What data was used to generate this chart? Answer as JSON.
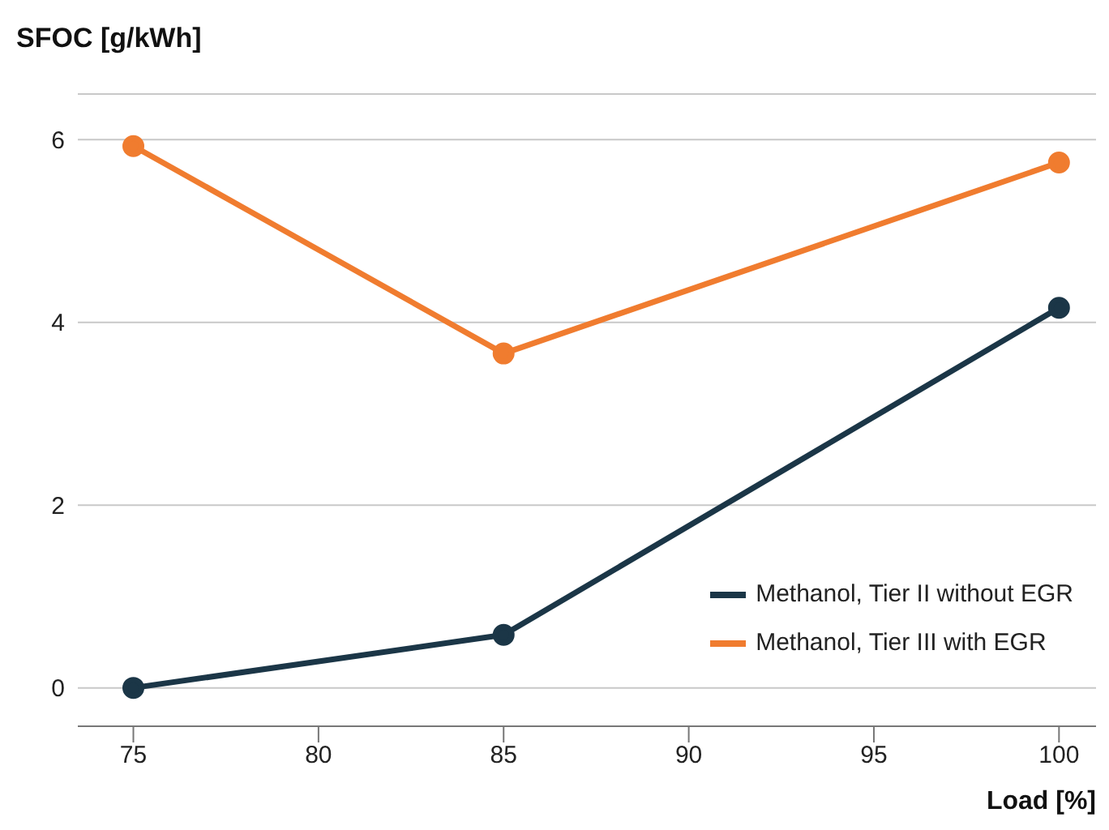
{
  "chart_data": {
    "type": "line",
    "ylabel": "SFOC [g/kWh]",
    "xlabel": "Load [%]",
    "x": [
      75,
      85,
      100
    ],
    "series": [
      {
        "name": "Methanol, Tier II without EGR",
        "color": "#1b3647",
        "values": [
          0,
          0.58,
          4.16
        ]
      },
      {
        "name": "Methanol, Tier III with EGR",
        "color": "#f07c2f",
        "values": [
          5.93,
          3.66,
          5.75
        ]
      }
    ],
    "xlim": [
      73.5,
      101
    ],
    "xticks": [
      75,
      80,
      85,
      90,
      95,
      100
    ],
    "ylim": [
      -0.42,
      6.5
    ],
    "yticks": [
      0,
      2,
      4,
      6
    ],
    "grid": "y",
    "legend": "bottom right",
    "marker": "circle",
    "line_style": "solid"
  }
}
